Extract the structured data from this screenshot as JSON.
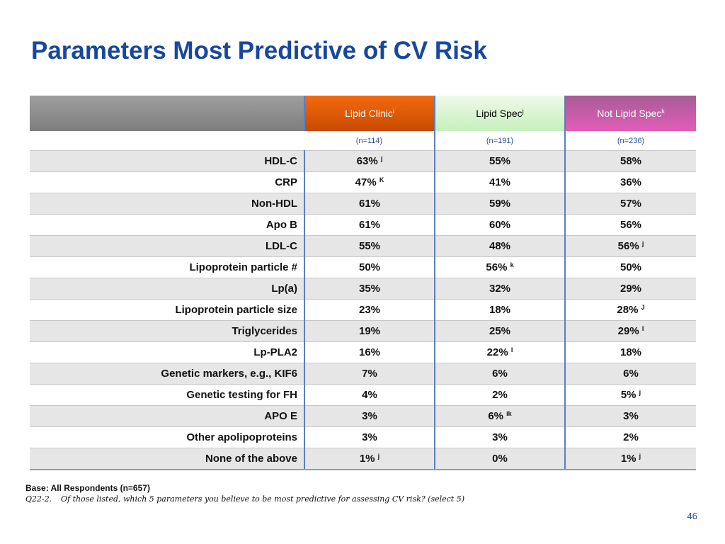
{
  "title": "Parameters Most Predictive of CV Risk",
  "columns": [
    {
      "label": "Lipid Clinic",
      "sup": "i",
      "n": "(n=114)"
    },
    {
      "label": "Lipid Spec",
      "sup": "j",
      "n": "(n=191)"
    },
    {
      "label": "Not Lipid Spec",
      "sup": "k",
      "n": "(n=236)"
    }
  ],
  "rows": [
    {
      "label": "HDL-C",
      "values": [
        {
          "v": "63%",
          "s": "j"
        },
        {
          "v": "55%",
          "s": ""
        },
        {
          "v": "58%",
          "s": ""
        }
      ]
    },
    {
      "label": "CRP",
      "values": [
        {
          "v": "47%",
          "s": "K"
        },
        {
          "v": "41%",
          "s": ""
        },
        {
          "v": "36%",
          "s": ""
        }
      ]
    },
    {
      "label": "Non-HDL",
      "values": [
        {
          "v": "61%",
          "s": ""
        },
        {
          "v": "59%",
          "s": ""
        },
        {
          "v": "57%",
          "s": ""
        }
      ]
    },
    {
      "label": "Apo B",
      "values": [
        {
          "v": "61%",
          "s": ""
        },
        {
          "v": "60%",
          "s": ""
        },
        {
          "v": "56%",
          "s": ""
        }
      ]
    },
    {
      "label": "LDL-C",
      "values": [
        {
          "v": "55%",
          "s": ""
        },
        {
          "v": "48%",
          "s": ""
        },
        {
          "v": "56%",
          "s": "j"
        }
      ]
    },
    {
      "label": "Lipoprotein particle #",
      "values": [
        {
          "v": "50%",
          "s": ""
        },
        {
          "v": "56%",
          "s": "k"
        },
        {
          "v": "50%",
          "s": ""
        }
      ]
    },
    {
      "label": "Lp(a)",
      "values": [
        {
          "v": "35%",
          "s": ""
        },
        {
          "v": "32%",
          "s": ""
        },
        {
          "v": "29%",
          "s": ""
        }
      ]
    },
    {
      "label": "Lipoprotein particle size",
      "values": [
        {
          "v": "23%",
          "s": ""
        },
        {
          "v": "18%",
          "s": ""
        },
        {
          "v": "28%",
          "s": "J"
        }
      ]
    },
    {
      "label": "Triglycerides",
      "values": [
        {
          "v": "19%",
          "s": ""
        },
        {
          "v": "25%",
          "s": ""
        },
        {
          "v": "29%",
          "s": "I"
        }
      ]
    },
    {
      "label": "Lp-PLA2",
      "values": [
        {
          "v": "16%",
          "s": ""
        },
        {
          "v": "22%",
          "s": "I"
        },
        {
          "v": "18%",
          "s": ""
        }
      ]
    },
    {
      "label": "Genetic markers, e.g., KIF6",
      "values": [
        {
          "v": "7%",
          "s": ""
        },
        {
          "v": "6%",
          "s": ""
        },
        {
          "v": "6%",
          "s": ""
        }
      ]
    },
    {
      "label": "Genetic testing for FH",
      "values": [
        {
          "v": "4%",
          "s": ""
        },
        {
          "v": "2%",
          "s": ""
        },
        {
          "v": "5%",
          "s": "j"
        }
      ]
    },
    {
      "label": "APO E",
      "values": [
        {
          "v": "3%",
          "s": ""
        },
        {
          "v": "6%",
          "s": "ik"
        },
        {
          "v": "3%",
          "s": ""
        }
      ]
    },
    {
      "label": "Other apolipoproteins",
      "values": [
        {
          "v": "3%",
          "s": ""
        },
        {
          "v": "3%",
          "s": ""
        },
        {
          "v": "2%",
          "s": ""
        }
      ]
    },
    {
      "label": "None of the above",
      "values": [
        {
          "v": "1%",
          "s": "j"
        },
        {
          "v": "0%",
          "s": ""
        },
        {
          "v": "1%",
          "s": "j"
        }
      ]
    }
  ],
  "footer": {
    "base": "Base: All Respondents (n=657)",
    "question_num": "Q22-2.",
    "question_text": "Of those listed, which 5 parameters you believe to be most predictive for assessing CV risk? (select 5)"
  },
  "page_number": "46",
  "colors": {
    "title": "#17479e",
    "lipid_clinic_header": "#e55c00",
    "lipid_spec_header": "#d4f4cc",
    "not_lipid_spec_header": "#c95aa8"
  }
}
